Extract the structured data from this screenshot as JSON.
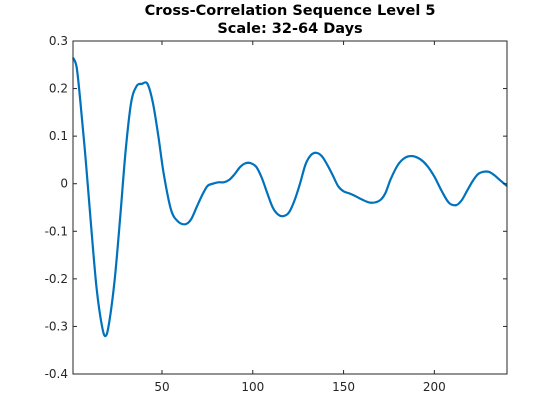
{
  "chart_data": {
    "type": "line",
    "title": "Cross-Correlation Sequence Level 5",
    "subtitle": "Scale: 32-64 Days",
    "xlabel": "",
    "ylabel": "",
    "xlim": [
      1,
      240
    ],
    "ylim": [
      -0.4,
      0.3
    ],
    "xticks": [
      50,
      100,
      150,
      200
    ],
    "yticks": [
      -0.4,
      -0.3,
      -0.2,
      -0.1,
      0,
      0.1,
      0.2,
      0.3
    ],
    "grid": false,
    "box": true,
    "colors": {
      "line": "#0072BD",
      "axes": "#262626",
      "background": "#ffffff"
    },
    "series": [
      {
        "name": "",
        "x": [
          1,
          3,
          5,
          8,
          11,
          14,
          17,
          19,
          21,
          24,
          27,
          30,
          33,
          36,
          39,
          42,
          45,
          48,
          51,
          55,
          59,
          63,
          66,
          69,
          72,
          75,
          78,
          81,
          84,
          87,
          90,
          93,
          96,
          99,
          102,
          105,
          108,
          111,
          114,
          117,
          120,
          123,
          126,
          129,
          132,
          135,
          138,
          141,
          144,
          147,
          150,
          153,
          156,
          160,
          165,
          170,
          173,
          176,
          180,
          184,
          188,
          192,
          196,
          200,
          204,
          208,
          212,
          215,
          218,
          221,
          224,
          227,
          230,
          233,
          236,
          240
        ],
        "y": [
          0.265,
          0.245,
          0.175,
          0.05,
          -0.09,
          -0.22,
          -0.3,
          -0.32,
          -0.29,
          -0.2,
          -0.07,
          0.07,
          0.17,
          0.205,
          0.21,
          0.21,
          0.17,
          0.1,
          0.02,
          -0.055,
          -0.08,
          -0.085,
          -0.075,
          -0.05,
          -0.025,
          -0.005,
          0,
          0.003,
          0.003,
          0.008,
          0.02,
          0.035,
          0.043,
          0.043,
          0.035,
          0.012,
          -0.02,
          -0.05,
          -0.065,
          -0.068,
          -0.06,
          -0.035,
          0,
          0.04,
          0.06,
          0.065,
          0.058,
          0.04,
          0.018,
          -0.005,
          -0.016,
          -0.02,
          -0.025,
          -0.033,
          -0.04,
          -0.035,
          -0.02,
          0.01,
          0.04,
          0.055,
          0.058,
          0.052,
          0.038,
          0.015,
          -0.015,
          -0.04,
          -0.045,
          -0.035,
          -0.015,
          0.005,
          0.02,
          0.025,
          0.025,
          0.018,
          0.008,
          -0.005
        ]
      }
    ]
  }
}
